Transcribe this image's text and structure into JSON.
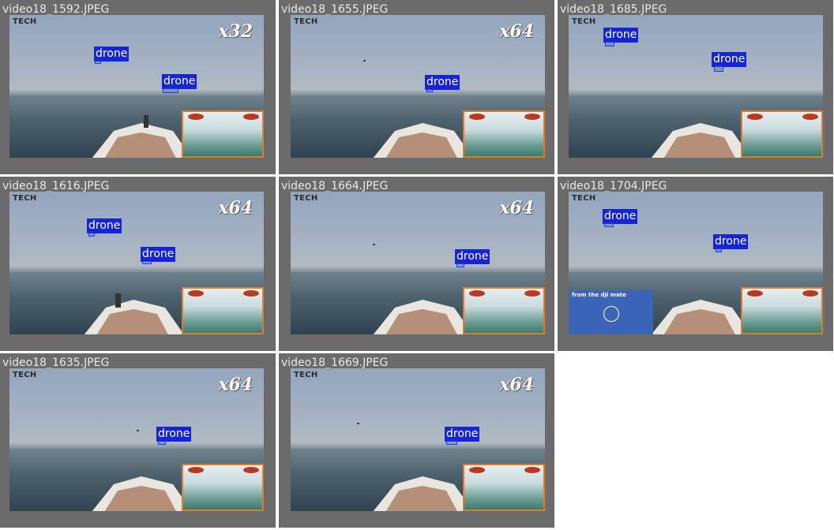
{
  "logo": {
    "head": "",
    "tail": "TECH"
  },
  "inset_caption": "from the dji mate",
  "colors": {
    "label_bg": "#1424d6",
    "tile_bg": "#6b6b6b",
    "pip_border": "#e07a2c"
  },
  "tiles": [
    {
      "filename": "video18_1592.JPEG",
      "zoom": "x32",
      "detections": [
        "drone",
        "drone"
      ]
    },
    {
      "filename": "video18_1655.JPEG",
      "zoom": "x64",
      "detections": [
        "drone"
      ]
    },
    {
      "filename": "video18_1685.JPEG",
      "zoom": "",
      "detections": [
        "drone",
        "drone"
      ]
    },
    {
      "filename": "video18_1616.JPEG",
      "zoom": "x64",
      "detections": [
        "drone",
        "drone"
      ]
    },
    {
      "filename": "video18_1664.JPEG",
      "zoom": "x64",
      "detections": [
        "drone"
      ]
    },
    {
      "filename": "video18_1704.JPEG",
      "zoom": "",
      "detections": [
        "drone",
        "drone"
      ]
    },
    {
      "filename": "video18_1635.JPEG",
      "zoom": "x64",
      "detections": [
        "drone"
      ]
    },
    {
      "filename": "video18_1669.JPEG",
      "zoom": "x64",
      "detections": [
        "drone"
      ]
    }
  ]
}
